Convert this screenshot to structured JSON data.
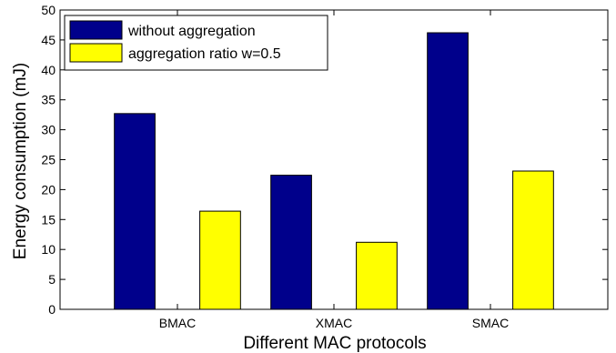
{
  "chart_data": {
    "type": "bar",
    "categories": [
      "BMAC",
      "XMAC",
      "SMAC"
    ],
    "series": [
      {
        "name": "without aggregation",
        "color": "#00008b",
        "values": [
          32.7,
          22.4,
          46.2
        ]
      },
      {
        "name": "aggregation ratio w=0.5",
        "color": "#ffff00",
        "values": [
          16.4,
          11.2,
          23.1
        ]
      }
    ],
    "xlabel": "Different MAC protocols",
    "ylabel": "Energy consumption (mJ)",
    "ylim": [
      0,
      50
    ],
    "yticks": [
      0,
      5,
      10,
      15,
      20,
      25,
      30,
      35,
      40,
      45,
      50
    ],
    "grid": false,
    "legend_position": "top-left"
  }
}
